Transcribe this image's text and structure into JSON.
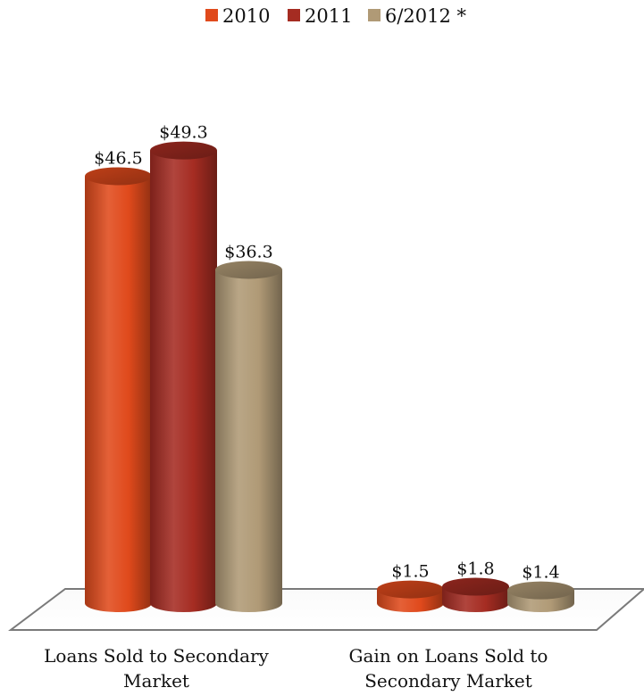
{
  "chart_data": {
    "type": "bar",
    "style": "3d-cylinder",
    "title": "",
    "xlabel": "",
    "ylabel": "",
    "categories": [
      [
        "Loans Sold to Secondary",
        "Market"
      ],
      [
        "Gain on Loans Sold to",
        "Secondary Market"
      ]
    ],
    "series": [
      {
        "name": "2010",
        "values": [
          46.5,
          1.5
        ],
        "labels": [
          "$46.5",
          "$1.5"
        ],
        "color": "#e04a1c"
      },
      {
        "name": "2011",
        "values": [
          49.3,
          1.8
        ],
        "labels": [
          "$49.3",
          "$1.8"
        ],
        "color": "#a52c22"
      },
      {
        "name": "6/2012 *",
        "values": [
          36.3,
          1.4
        ],
        "labels": [
          "$36.3",
          "$1.4"
        ],
        "color": "#b09a76"
      }
    ],
    "ylim": [
      0,
      55
    ],
    "grid": false,
    "legend_position": "top-center",
    "floor_color": "#7a7a7a"
  }
}
